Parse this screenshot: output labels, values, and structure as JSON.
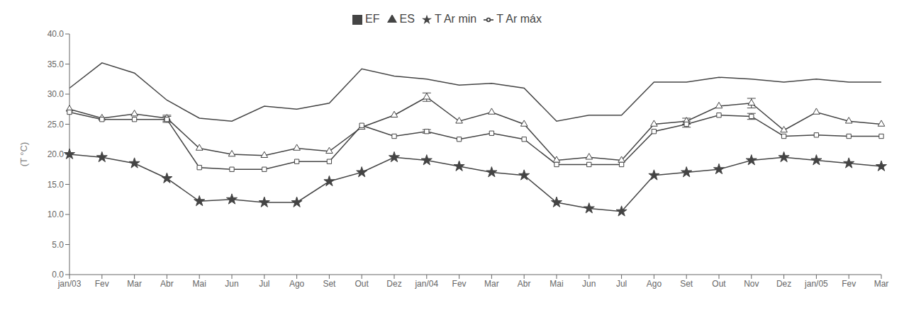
{
  "chart_data": {
    "type": "line",
    "ylabel": "(T °C)",
    "categories": [
      "jan/03",
      "Fev",
      "Mar",
      "Abr",
      "Mai",
      "Jun",
      "Jul",
      "Ago",
      "Set",
      "Out",
      "Dez",
      "jan/04",
      "Fev",
      "Mar",
      "Abr",
      "Mai",
      "Jun",
      "Jul",
      "Ago",
      "Set",
      "Out",
      "Nov",
      "Dez",
      "jan/05",
      "Fev",
      "Mar"
    ],
    "series": [
      {
        "name": "T Ar máx",
        "color": "#444444",
        "marker": "none",
        "line_style": "solid",
        "values": [
          31.0,
          35.2,
          33.5,
          29.0,
          26.0,
          25.5,
          28.0,
          27.5,
          28.5,
          34.2,
          33.0,
          32.5,
          31.5,
          31.8,
          31.0,
          25.5,
          26.5,
          26.5,
          32.0,
          32.0,
          32.8,
          32.5,
          32.0,
          32.5,
          32.0,
          32.0
        ]
      },
      {
        "name": "T Ar min",
        "color": "#444444",
        "marker": "star",
        "line_style": "solid",
        "values": [
          20.0,
          19.5,
          18.5,
          16.0,
          12.2,
          12.5,
          12.0,
          12.0,
          15.5,
          17.0,
          19.5,
          19.0,
          18.0,
          17.0,
          16.5,
          12.0,
          11.0,
          10.5,
          16.5,
          17.0,
          17.5,
          19.0,
          19.5,
          19.0,
          18.5,
          18.0
        ]
      },
      {
        "name": "ES",
        "color": "#444444",
        "marker": "triangle",
        "line_style": "solid",
        "values": [
          27.5,
          26.0,
          26.7,
          26.0,
          21.0,
          20.0,
          19.8,
          21.0,
          20.5,
          24.5,
          26.5,
          29.5,
          25.5,
          27.0,
          25.0,
          19.0,
          19.5,
          19.0,
          25.0,
          25.5,
          28.0,
          28.5,
          24.0,
          27.0,
          25.5,
          25.0
        ],
        "errors": [
          0.0,
          0.0,
          0.0,
          0.5,
          0.0,
          0.0,
          0.0,
          0.0,
          0.0,
          0.0,
          0.0,
          0.7,
          0.0,
          0.0,
          0.0,
          0.0,
          0.0,
          0.0,
          0.0,
          0.5,
          0.0,
          0.8,
          0.0,
          0.0,
          0.0,
          0.0
        ]
      },
      {
        "name": "EF",
        "color": "#444444",
        "marker": "square",
        "line_style": "solid",
        "values": [
          27.0,
          25.8,
          25.8,
          25.8,
          17.8,
          17.5,
          17.5,
          18.8,
          18.8,
          24.8,
          23.0,
          23.8,
          22.5,
          23.5,
          22.5,
          18.3,
          18.3,
          18.3,
          23.8,
          25.0,
          26.5,
          26.3,
          23.0,
          23.2,
          23.0,
          23.0
        ],
        "errors": [
          0.0,
          0.0,
          0.0,
          0.5,
          0.0,
          0.0,
          0.0,
          0.0,
          0.0,
          0.0,
          0.0,
          0.3,
          0.0,
          0.0,
          0.0,
          0.0,
          0.0,
          0.0,
          0.0,
          0.5,
          0.0,
          0.5,
          0.0,
          0.0,
          0.0,
          0.0
        ]
      }
    ],
    "ylim": [
      0.0,
      40.0
    ],
    "yticks": [
      {
        "value": 0,
        "label": "0.0"
      },
      {
        "value": 5,
        "label": "5.0"
      },
      {
        "value": 10,
        "label": "10.0"
      },
      {
        "value": 15,
        "label": "15.0"
      },
      {
        "value": 20,
        "label": "20.0"
      },
      {
        "value": 25,
        "label": "25.0"
      },
      {
        "value": 30,
        "label": "30.0"
      },
      {
        "value": 35,
        "label": "35.0"
      },
      {
        "value": 40,
        "label": "40.0"
      }
    ],
    "grid": false,
    "legend": "top"
  }
}
